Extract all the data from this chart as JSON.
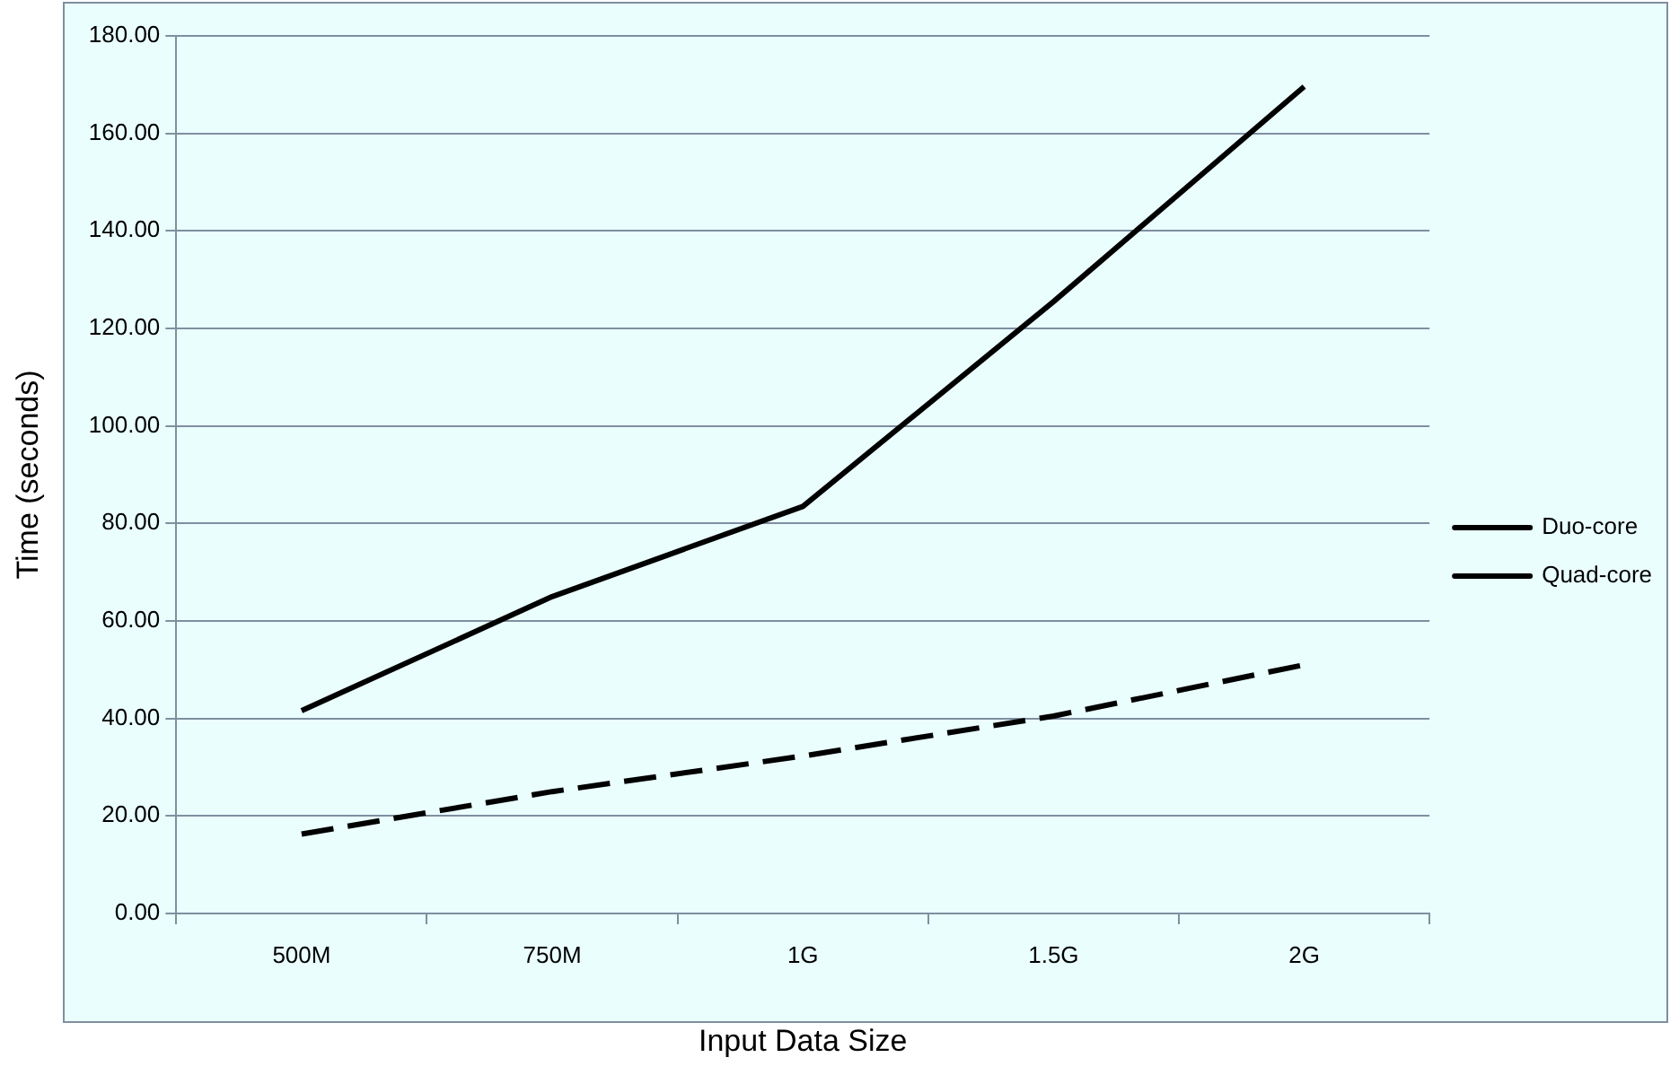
{
  "chart_data": {
    "type": "line",
    "xlabel": "Input Data Size",
    "ylabel": "Time (seconds)",
    "categories": [
      "500M",
      "750M",
      "1G",
      "1.5G",
      "2G"
    ],
    "series": [
      {
        "name": "Duo-core",
        "color": "#000000",
        "line_style": "solid",
        "values": [
          41.6,
          65,
          83.5,
          125.5,
          169.6
        ]
      },
      {
        "name": "Quad-core",
        "color": "#000000",
        "line_style": "dashed",
        "values": [
          16.3,
          25,
          32.3,
          40.5,
          51
        ]
      }
    ],
    "ylim": [
      0,
      180
    ],
    "yticks": [
      {
        "value": 0,
        "label": "0.00"
      },
      {
        "value": 20,
        "label": "20.00"
      },
      {
        "value": 40,
        "label": "40.00"
      },
      {
        "value": 60,
        "label": "60.00"
      },
      {
        "value": 80,
        "label": "80.00"
      },
      {
        "value": 100,
        "label": "100.00"
      },
      {
        "value": 120,
        "label": "120.00"
      },
      {
        "value": 140,
        "label": "140.00"
      },
      {
        "value": 160,
        "label": "160.00"
      },
      {
        "value": 180,
        "label": "180.00"
      }
    ],
    "grid": "y",
    "legend": "right",
    "marker": "none"
  }
}
